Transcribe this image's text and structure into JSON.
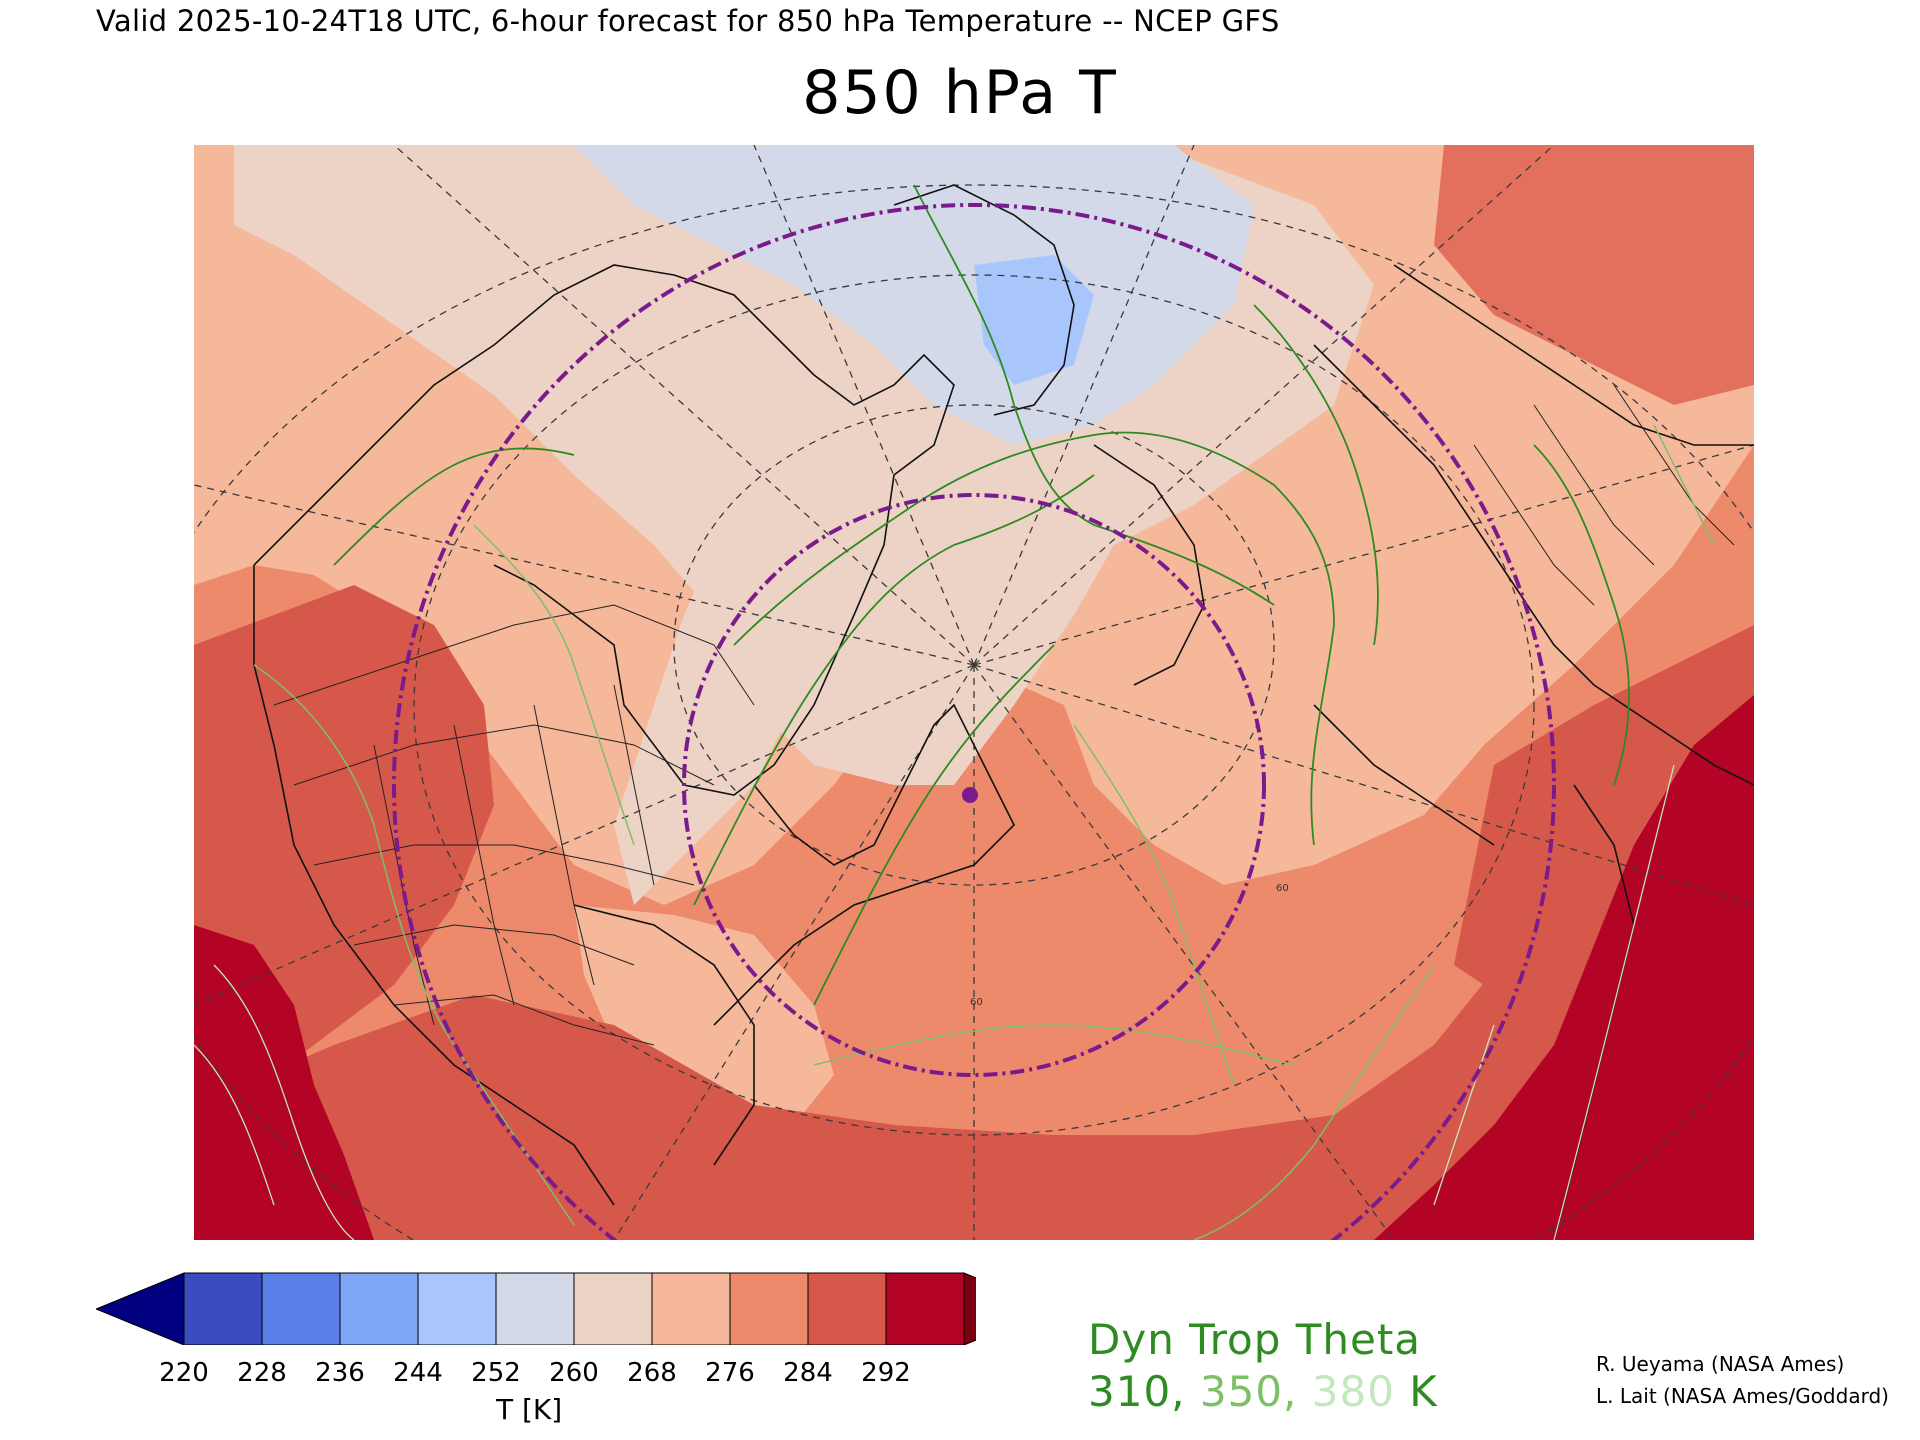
{
  "header": {
    "subtitle": "Valid 2025-10-24T18 UTC, 6-hour forecast for 850 hPa Temperature -- NCEP GFS",
    "title": "850 hPa T"
  },
  "colorbar": {
    "label": "T [K]",
    "ticks": [
      "220",
      "228",
      "236",
      "244",
      "252",
      "260",
      "268",
      "276",
      "284",
      "292"
    ],
    "colors": [
      "#000080",
      "#3a4cc0",
      "#5b7ee8",
      "#80a6f8",
      "#a9c6fc",
      "#d3d9e8",
      "#ecd3c5",
      "#f6b89a",
      "#ee8a6c",
      "#d6584a",
      "#b40426",
      "#7a0010"
    ]
  },
  "legend": {
    "title": "Dyn Trop Theta",
    "values": [
      "310",
      "350",
      "380"
    ],
    "sep": ", ",
    "unit": " K",
    "colors": [
      "#2e8b22",
      "#7cc068",
      "#c4e8bd"
    ]
  },
  "credits": {
    "line1": "R. Ueyama (NASA Ames)",
    "line2": "L. Lait (NASA Ames/Goddard)"
  },
  "map": {
    "grid_labels": [
      "60",
      "60"
    ],
    "marker_color": "#7a1a8c"
  }
}
